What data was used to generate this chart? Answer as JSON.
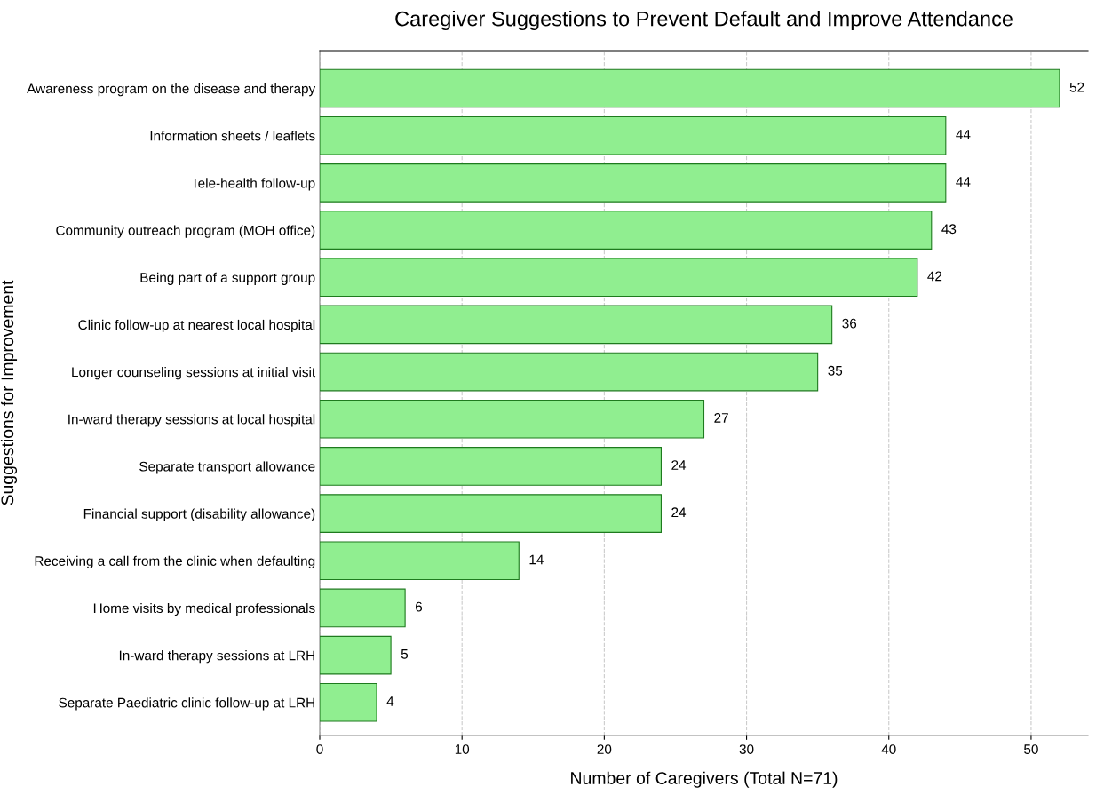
{
  "chart_data": {
    "type": "bar",
    "orientation": "horizontal",
    "title": "Caregiver Suggestions to Prevent Default and Improve Attendance",
    "xlabel": "Number of Caregivers (Total N=71)",
    "ylabel": "Suggestions for Improvement",
    "categories": [
      "Awareness program on the disease and therapy",
      "Information sheets / leaflets",
      "Tele-health follow-up",
      "Community outreach program (MOH office)",
      "Being part of a support group",
      "Clinic follow-up at nearest local hospital",
      "Longer counseling sessions at initial visit",
      "In-ward therapy sessions at local hospital",
      "Separate transport allowance",
      "Financial support (disability allowance)",
      "Receiving a call from the clinic when defaulting",
      "Home visits by medical professionals",
      "In-ward therapy sessions at LRH",
      "Separate Paediatric clinic follow-up at LRH"
    ],
    "values": [
      52,
      44,
      44,
      43,
      42,
      36,
      35,
      27,
      24,
      24,
      14,
      6,
      5,
      4
    ],
    "color": "#90ee90",
    "xlim": [
      0,
      54
    ],
    "xticks": [
      0,
      10,
      20,
      30,
      40,
      50
    ],
    "grid": "x",
    "data_labels": true
  }
}
